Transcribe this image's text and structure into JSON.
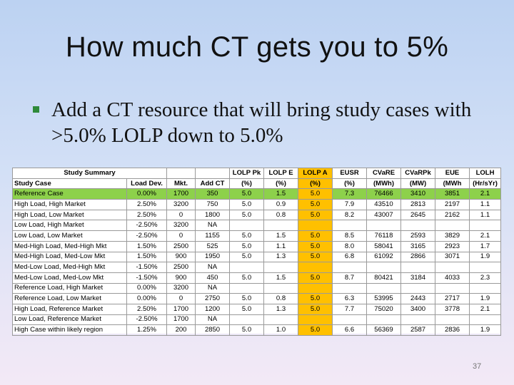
{
  "slide": {
    "title": "How much CT gets you to 5%",
    "bullet": "Add a CT resource that will bring study cases with >5.0% LOLP down to 5.0%",
    "page_number": "37"
  },
  "colors": {
    "reference_row": "#8dd14b",
    "highlight_column": "#ffc000",
    "bullet_marker": "#2f8a3a"
  },
  "table": {
    "summary_header": "Study Summary",
    "group_headers": [
      "LOLP Pk",
      "LOLP E",
      "LOLP A",
      "EUSR",
      "CVaRE",
      "CVaRPk",
      "EUE",
      "LOLH"
    ],
    "column_headers": [
      "Study Case",
      "Load Dev.",
      "Mkt.",
      "Add CT",
      "(%)",
      "(%)",
      "(%)",
      "(%)",
      "(MWh)",
      "(MW)",
      "(MWh",
      "(Hr/sYr)"
    ],
    "rows": [
      [
        "Reference Case",
        "0.00%",
        "1700",
        "350",
        "5.0",
        "1.5",
        "5.0",
        "7.3",
        "76466",
        "3410",
        "3851",
        "2.1"
      ],
      [
        "High Load, High Market",
        "2.50%",
        "3200",
        "750",
        "5.0",
        "0.9",
        "5.0",
        "7.9",
        "43510",
        "2813",
        "2197",
        "1.1"
      ],
      [
        "High Load, Low Market",
        "2.50%",
        "0",
        "1800",
        "5.0",
        "0.8",
        "5.0",
        "8.2",
        "43007",
        "2645",
        "2162",
        "1.1"
      ],
      [
        "Low Load, High Market",
        "-2.50%",
        "3200",
        "NA",
        "",
        "",
        "",
        "",
        "",
        "",
        "",
        ""
      ],
      [
        "Low Load, Low Market",
        "-2.50%",
        "0",
        "1155",
        "5.0",
        "1.5",
        "5.0",
        "8.5",
        "76118",
        "2593",
        "3829",
        "2.1"
      ],
      [
        "Med-High Load, Med-High Mkt",
        "1.50%",
        "2500",
        "525",
        "5.0",
        "1.1",
        "5.0",
        "8.0",
        "58041",
        "3165",
        "2923",
        "1.7"
      ],
      [
        "Med-High Load, Med-Low Mkt",
        "1.50%",
        "900",
        "1950",
        "5.0",
        "1.3",
        "5.0",
        "6.8",
        "61092",
        "2866",
        "3071",
        "1.9"
      ],
      [
        "Med-Low Load, Med-High Mkt",
        "-1.50%",
        "2500",
        "NA",
        "",
        "",
        "",
        "",
        "",
        "",
        "",
        ""
      ],
      [
        "Med-Low Load, Med-Low Mkt",
        "-1.50%",
        "900",
        "450",
        "5.0",
        "1.5",
        "5.0",
        "8.7",
        "80421",
        "3184",
        "4033",
        "2.3"
      ],
      [
        "Reference Load, High Market",
        "0.00%",
        "3200",
        "NA",
        "",
        "",
        "",
        "",
        "",
        "",
        "",
        ""
      ],
      [
        "Reference Load, Low Market",
        "0.00%",
        "0",
        "2750",
        "5.0",
        "0.8",
        "5.0",
        "6.3",
        "53995",
        "2443",
        "2717",
        "1.9"
      ],
      [
        "High Load, Reference Market",
        "2.50%",
        "1700",
        "1200",
        "5.0",
        "1.3",
        "5.0",
        "7.7",
        "75020",
        "3400",
        "3778",
        "2.1"
      ],
      [
        "Low Load, Reference Market",
        "-2.50%",
        "1700",
        "NA",
        "",
        "",
        "",
        "",
        "",
        "",
        "",
        ""
      ],
      [
        "High Case within likely region",
        "1.25%",
        "200",
        "2850",
        "5.0",
        "1.0",
        "5.0",
        "6.6",
        "56369",
        "2587",
        "2836",
        "1.9"
      ]
    ]
  }
}
